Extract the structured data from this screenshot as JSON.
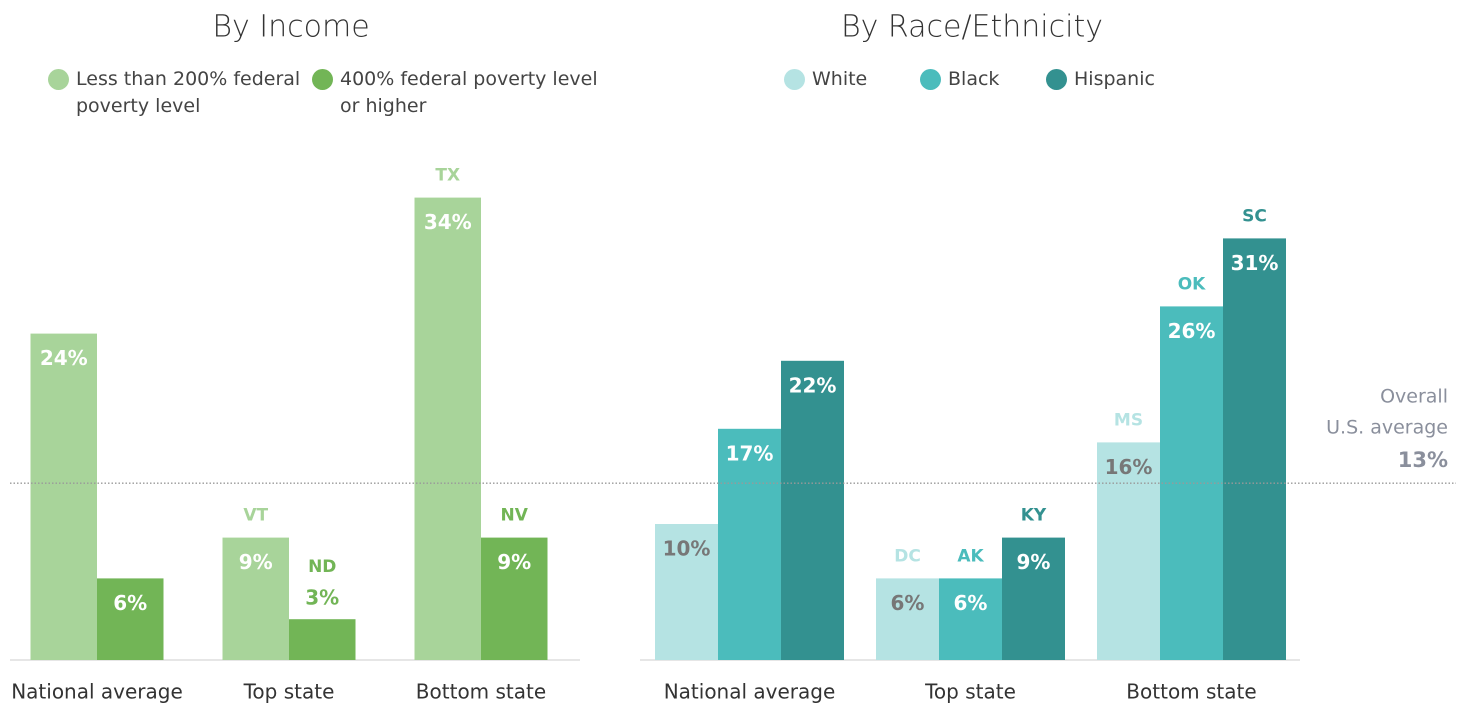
{
  "chart_data": [
    {
      "type": "bar",
      "title": "By Income",
      "categories": [
        "National average",
        "Top state",
        "Bottom state"
      ],
      "ylim": [
        0,
        35
      ],
      "series": [
        {
          "name": "Less than 200% federal poverty level",
          "color": "#a8d49a",
          "label_color": "#ffffff",
          "values": [
            24,
            9,
            34
          ],
          "value_labels": [
            "24%",
            "9%",
            "34%"
          ],
          "annotations": [
            null,
            "VT",
            "TX"
          ]
        },
        {
          "name": "400% federal poverty level or higher",
          "color": "#72b556",
          "label_color": "#ffffff",
          "values": [
            6,
            3,
            9
          ],
          "value_labels": [
            "6%",
            "3%",
            "9%"
          ],
          "annotations": [
            null,
            "ND",
            "NV"
          ]
        }
      ]
    },
    {
      "type": "bar",
      "title": "By Race/Ethnicity",
      "categories": [
        "National average",
        "Top state",
        "Bottom state"
      ],
      "ylim": [
        0,
        35
      ],
      "series": [
        {
          "name": "White",
          "color": "#b5e3e3",
          "label_color": "#777777",
          "values": [
            10,
            6,
            16
          ],
          "value_labels": [
            "10%",
            "6%",
            "16%"
          ],
          "annotations": [
            null,
            "DC",
            "MS"
          ]
        },
        {
          "name": "Black",
          "color": "#4bbcbc",
          "label_color": "#ffffff",
          "values": [
            17,
            6,
            26
          ],
          "value_labels": [
            "17%",
            "6%",
            "26%"
          ],
          "annotations": [
            null,
            "AK",
            "OK"
          ]
        },
        {
          "name": "Hispanic",
          "color": "#339190",
          "label_color": "#ffffff",
          "values": [
            22,
            9,
            31
          ],
          "value_labels": [
            "22%",
            "9%",
            "31%"
          ],
          "annotations": [
            null,
            "KY",
            "SC"
          ]
        }
      ],
      "reference_line": {
        "value": 13,
        "label": [
          "Overall",
          "U.S. average"
        ],
        "value_label": "13%"
      }
    }
  ]
}
